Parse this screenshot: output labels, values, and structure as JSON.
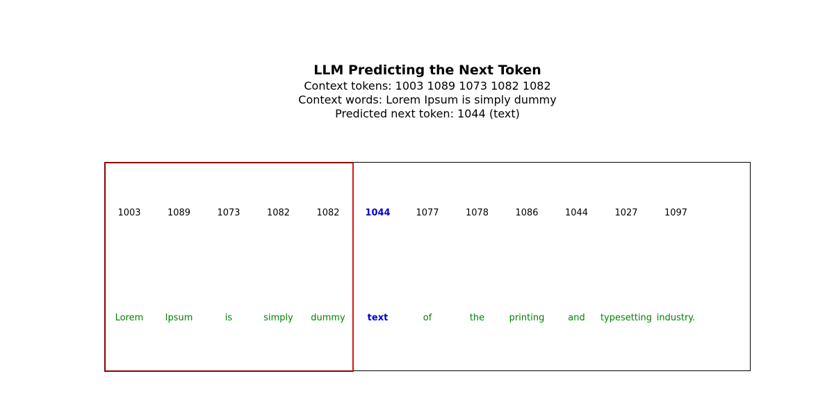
{
  "title": "LLM Predicting the Next Token",
  "subtitle_lines": [
    "Context tokens: 1003 1089 1073 1082 1082",
    "Context words: Lorem Ipsum is simply dummy",
    "Predicted next token: 1044 (text)"
  ],
  "context_length": 5,
  "predicted_index": 5,
  "tokens": [
    {
      "id": "1003",
      "word": "Lorem"
    },
    {
      "id": "1089",
      "word": "Ipsum"
    },
    {
      "id": "1073",
      "word": "is"
    },
    {
      "id": "1082",
      "word": "simply"
    },
    {
      "id": "1082",
      "word": "dummy"
    },
    {
      "id": "1044",
      "word": "text"
    },
    {
      "id": "1077",
      "word": "of"
    },
    {
      "id": "1078",
      "word": "the"
    },
    {
      "id": "1086",
      "word": "printing"
    },
    {
      "id": "1044",
      "word": "and"
    },
    {
      "id": "1027",
      "word": "typesetting"
    },
    {
      "id": "1097",
      "word": "industry."
    }
  ],
  "colors": {
    "context_box": "#dd1111",
    "word_text": "#008000",
    "predicted_text": "#0000dd",
    "frame": "#000000"
  }
}
